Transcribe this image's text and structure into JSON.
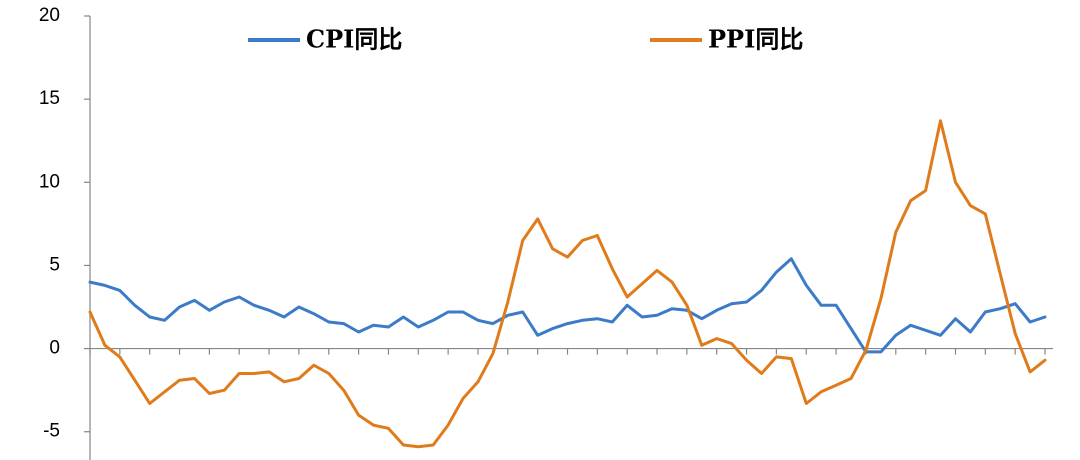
{
  "chart_data": {
    "type": "line",
    "categories": [
      null,
      null,
      null,
      null,
      null,
      null,
      null,
      null,
      null,
      null,
      null,
      null,
      null,
      null,
      null,
      null,
      null,
      null,
      null,
      null,
      null,
      null,
      null,
      null,
      null,
      null,
      null,
      null,
      null,
      null,
      null,
      null,
      null,
      null,
      null,
      null,
      null,
      null,
      null,
      null,
      null,
      null,
      null,
      null,
      null,
      null,
      null,
      null,
      null,
      null,
      null,
      null,
      null,
      null,
      null,
      null,
      null,
      null,
      null,
      null,
      null,
      null,
      null,
      null,
      null
    ],
    "series": [
      {
        "name": "CPI同比",
        "color": "#3b7bc8",
        "values": [
          4.0,
          3.8,
          3.5,
          2.6,
          1.9,
          1.7,
          2.5,
          2.9,
          2.3,
          2.8,
          3.1,
          2.6,
          2.3,
          1.9,
          2.5,
          2.1,
          1.6,
          1.5,
          1.0,
          1.4,
          1.3,
          1.9,
          1.3,
          1.7,
          2.2,
          2.2,
          1.7,
          1.5,
          2.0,
          2.2,
          0.8,
          1.2,
          1.5,
          1.7,
          1.8,
          1.6,
          2.6,
          1.9,
          2.0,
          2.4,
          2.3,
          1.8,
          2.3,
          2.7,
          2.8,
          3.5,
          4.6,
          5.4,
          3.8,
          2.6,
          2.6,
          1.2,
          -0.2,
          -0.2,
          0.8,
          1.4,
          1.1,
          0.8,
          1.8,
          1.0,
          2.2,
          2.4,
          2.7,
          1.6,
          1.9
        ]
      },
      {
        "name": "PPI同比",
        "color": "#e07b1b",
        "values": [
          2.2,
          0.2,
          -0.5,
          -1.9,
          -3.3,
          -2.6,
          -1.9,
          -1.8,
          -2.7,
          -2.5,
          -1.5,
          -1.5,
          -1.4,
          -2.0,
          -1.8,
          -1.0,
          -1.5,
          -2.5,
          -4.0,
          -4.6,
          -4.8,
          -5.8,
          -5.9,
          -5.8,
          -4.6,
          -3.0,
          -2.0,
          -0.3,
          2.8,
          6.5,
          7.8,
          6.0,
          5.5,
          6.5,
          6.8,
          4.8,
          3.1,
          3.9,
          4.7,
          4.0,
          2.6,
          0.2,
          0.6,
          0.3,
          -0.7,
          -1.5,
          -0.5,
          -0.6,
          -3.3,
          -2.6,
          -2.2,
          -1.8,
          -0.1,
          3.0,
          7.0,
          8.9,
          9.5,
          13.7,
          10.0,
          8.6,
          8.1,
          4.5,
          0.9,
          -1.4,
          -0.7
        ]
      }
    ],
    "ylim": [
      -6.7,
      20
    ],
    "yticks": [
      -5,
      0,
      5,
      10,
      15,
      20
    ]
  }
}
